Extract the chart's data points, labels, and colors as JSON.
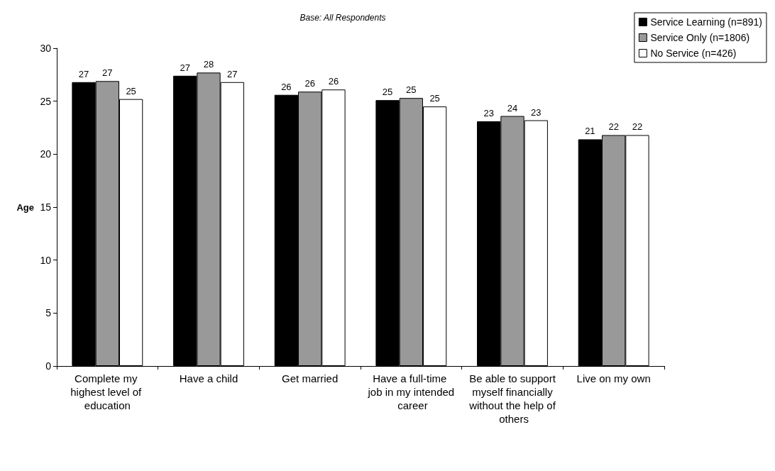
{
  "chart_data": {
    "type": "bar",
    "title": "Base: All Respondents",
    "ylabel": "Age",
    "categories": [
      "Complete my highest level of education",
      "Have a child",
      "Get married",
      "Have a full-time job in my intended career",
      "Be able to support myself financially without the help of others",
      "Live on my own"
    ],
    "series": [
      {
        "name": "Service Learning (n=891)",
        "color": "#000000",
        "values": [
          26.8,
          27.4,
          25.6,
          25.1,
          23.1,
          21.4
        ],
        "value_labels": [
          "27",
          "27",
          "26",
          "25",
          "23",
          "21"
        ]
      },
      {
        "name": "Service Only (n=1806)",
        "color": "#999999",
        "values": [
          26.9,
          27.7,
          25.9,
          25.3,
          23.6,
          21.8
        ],
        "value_labels": [
          "27",
          "28",
          "26",
          "25",
          "24",
          "22"
        ]
      },
      {
        "name": "No Service (n=426)",
        "color": "#ffffff",
        "values": [
          25.2,
          26.8,
          26.1,
          24.5,
          23.2,
          21.8
        ],
        "value_labels": [
          "25",
          "27",
          "26",
          "25",
          "23",
          "22"
        ]
      }
    ],
    "ylim": [
      0,
      30
    ],
    "yticks": [
      0,
      5,
      10,
      15,
      20,
      25,
      30
    ],
    "grid": false,
    "legend": "top right"
  }
}
